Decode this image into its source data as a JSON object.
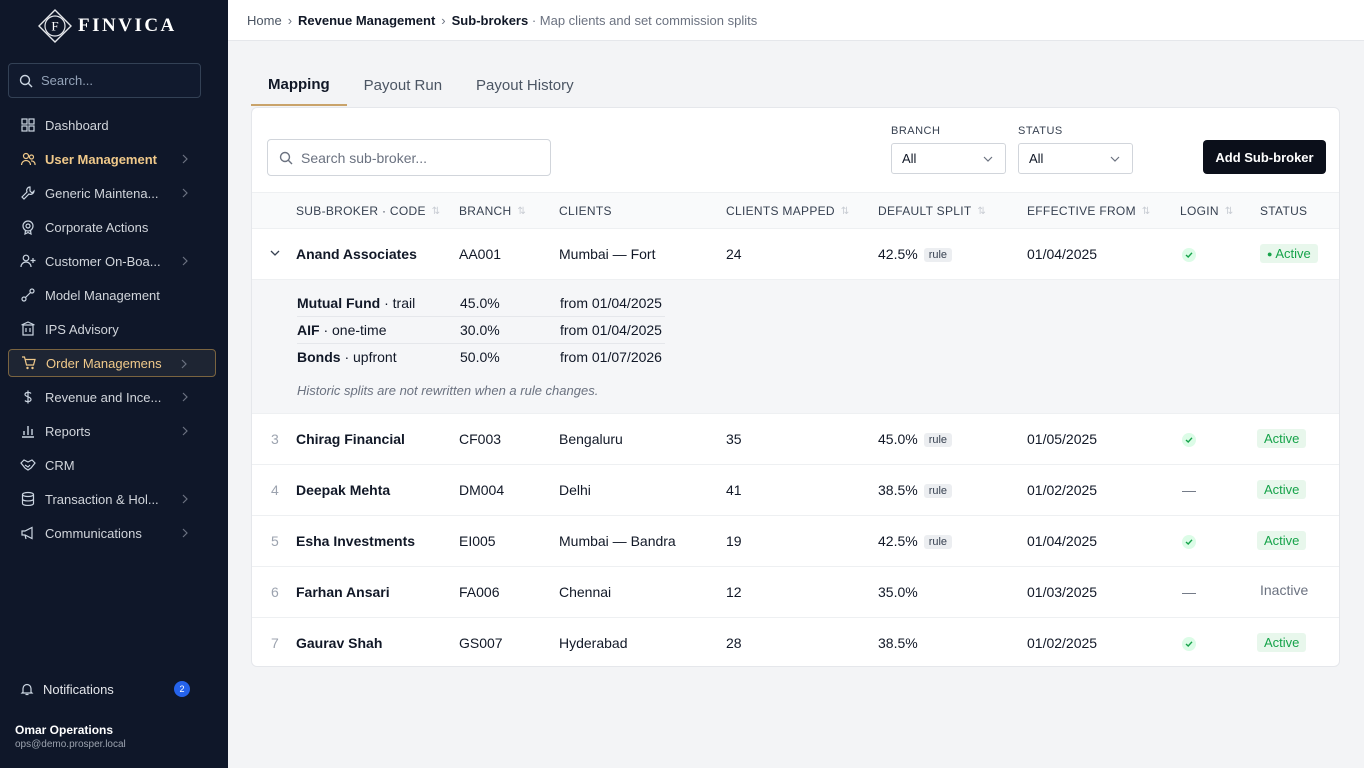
{
  "brand": {
    "name": "FINVICA",
    "monogram": "F"
  },
  "sidebar": {
    "search_placeholder": "Search...",
    "items": [
      {
        "label": "Dashboard",
        "icon": "grid-icon"
      },
      {
        "label": "User Management",
        "icon": "users-icon",
        "has_children": true
      },
      {
        "label": "Generic Maintena...",
        "icon": "wrench-icon",
        "has_children": true
      },
      {
        "label": "Corporate Actions",
        "icon": "badge-icon"
      },
      {
        "label": "Customer On-Boa...",
        "icon": "user-plus-icon",
        "has_children": true
      },
      {
        "label": "Model Management",
        "icon": "model-icon"
      },
      {
        "label": "IPS Advisory",
        "icon": "building-icon"
      },
      {
        "label": "Order Managemens",
        "icon": "cart-icon",
        "has_children": true
      },
      {
        "label": "Revenue and Ince...",
        "icon": "dollar-icon",
        "has_children": true
      },
      {
        "label": "Reports",
        "icon": "bar-chart-icon",
        "has_children": true
      },
      {
        "label": "CRM",
        "icon": "handshake-icon"
      },
      {
        "label": "Transaction & Hol...",
        "icon": "database-icon",
        "has_children": true
      },
      {
        "label": "Communications",
        "icon": "megaphone-icon",
        "has_children": true
      }
    ],
    "notifications": {
      "label": "Notifications",
      "count": "2"
    },
    "user": {
      "name": "Omar Operations",
      "email": "ops@demo.prosper.local"
    }
  },
  "breadcrumb": {
    "home": "Home",
    "section": "Revenue Management",
    "page": "Sub-brokers",
    "subtitle": "Map clients and set commission splits"
  },
  "tabs": [
    "Mapping",
    "Payout Run",
    "Payout History"
  ],
  "toolbar": {
    "search_placeholder": "Search sub-broker...",
    "branch_label": "BRANCH",
    "branch_value": "All",
    "status_label": "STATUS",
    "status_value": "All",
    "add_button": "Add Sub-broker"
  },
  "table": {
    "columns": [
      "SUB-BROKER · CODE",
      "BRANCH",
      "CLIENTS",
      "CLIENTS MAPPED",
      "DEFAULT SPLIT",
      "EFFECTIVE FROM",
      "LOGIN",
      "STATUS"
    ],
    "rule_tag": "rule",
    "expanded": {
      "name": "Anand Associates",
      "code": "AA001",
      "location": "Mumbai — Fort",
      "clients": "24",
      "split": "42.5%",
      "has_rule": true,
      "effective": "01/04/2025",
      "login": true,
      "status": "Active",
      "splits": [
        {
          "product": "Mutual Fund",
          "type": "trail",
          "percent": "45.0%",
          "from": "from 01/04/2025"
        },
        {
          "product": "AIF",
          "type": "one-time",
          "percent": "30.0%",
          "from": "from 01/04/2025"
        },
        {
          "product": "Bonds",
          "type": "upfront",
          "percent": "50.0%",
          "from": "from 01/07/2026"
        }
      ],
      "note": "Historic splits are not rewritten when a rule changes."
    },
    "rows": [
      {
        "idx": "3",
        "name": "Chirag Financial",
        "code": "CF003",
        "location": "Bengaluru",
        "clients": "35",
        "split": "45.0%",
        "has_rule": true,
        "effective": "01/05/2025",
        "login": true,
        "status": "Active"
      },
      {
        "idx": "4",
        "name": "Deepak Mehta",
        "code": "DM004",
        "location": "Delhi",
        "clients": "41",
        "split": "38.5%",
        "has_rule": true,
        "effective": "01/02/2025",
        "login": false,
        "status": "Active"
      },
      {
        "idx": "5",
        "name": "Esha Investments",
        "code": "EI005",
        "location": "Mumbai — Bandra",
        "clients": "19",
        "split": "42.5%",
        "has_rule": true,
        "effective": "01/04/2025",
        "login": true,
        "status": "Active"
      },
      {
        "idx": "6",
        "name": "Farhan Ansari",
        "code": "FA006",
        "location": "Chennai",
        "clients": "12",
        "split": "35.0%",
        "has_rule": false,
        "effective": "01/03/2025",
        "login": false,
        "status": "Inactive"
      },
      {
        "idx": "7",
        "name": "Gaurav Shah",
        "code": "GS007",
        "location": "Hyderabad",
        "clients": "28",
        "split": "38.5%",
        "has_rule": false,
        "effective": "01/02/2025",
        "login": true,
        "status": "Active"
      }
    ],
    "no_login_glyph": "—"
  },
  "colors": {
    "sidebar_bg": "#0f1729",
    "accent_gold": "#c9a36a",
    "active_green": "#16a34a",
    "button_dark": "#0b0f1a"
  }
}
